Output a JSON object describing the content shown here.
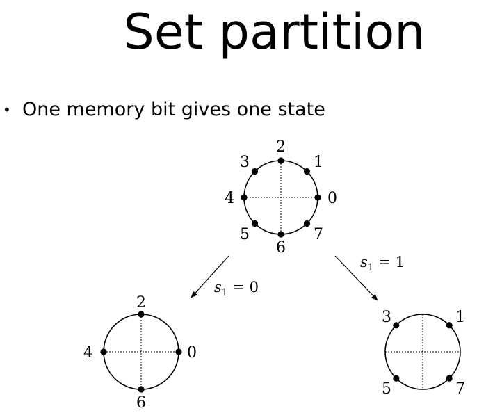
{
  "title": "Set partition",
  "bullet": "One memory bit gives one state",
  "diagram": {
    "top": {
      "labels": [
        "2",
        "1",
        "0",
        "7",
        "6",
        "5",
        "4",
        "3"
      ]
    },
    "left": {
      "labels": [
        "2",
        "0",
        "6",
        "4"
      ]
    },
    "right": {
      "labels": [
        "1",
        "7",
        "5",
        "3"
      ]
    },
    "edge_left": {
      "var": "s",
      "sub": "1",
      "rest": " = 0"
    },
    "edge_right": {
      "var": "s",
      "sub": "1",
      "rest": " = 1"
    }
  }
}
